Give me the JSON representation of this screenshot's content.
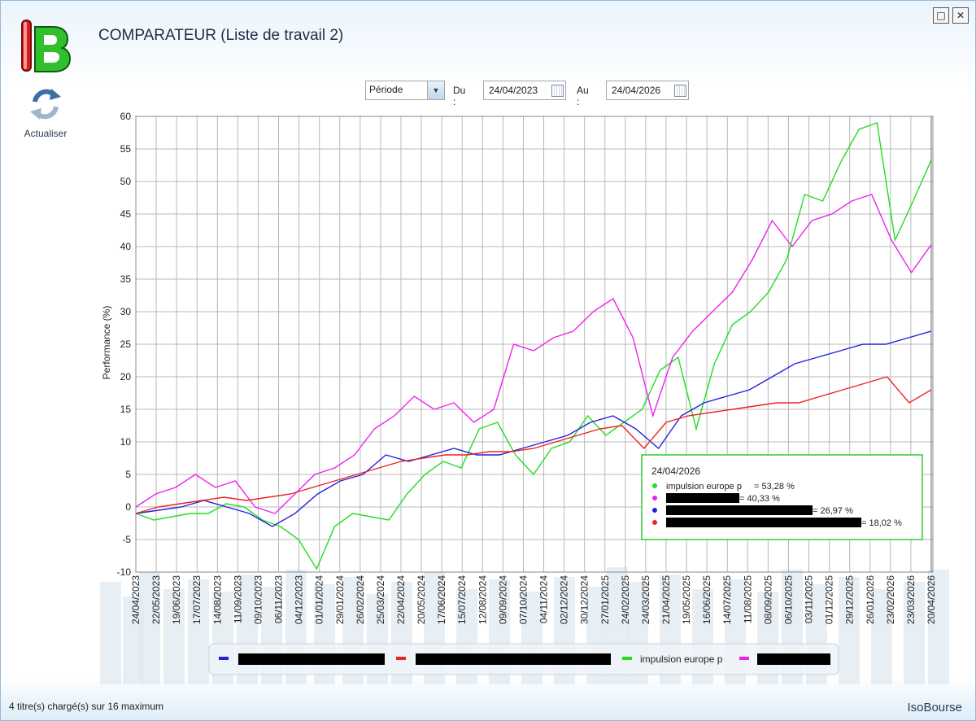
{
  "window": {
    "title": "COMPARATEUR (Liste de travail 2)"
  },
  "toolbar": {
    "refresh_label": "Actualiser"
  },
  "period": {
    "select_value": "Période",
    "from_label": "Du :",
    "from_value": "24/04/2023",
    "to_label": "Au :",
    "to_value": "24/04/2026"
  },
  "status": {
    "left": "4 titre(s) chargé(s) sur 16 maximum",
    "right": "IsoBourse"
  },
  "colors": {
    "green": "#22dd22",
    "magenta": "#ee22ee",
    "blue": "#2222dd",
    "red": "#ee2222"
  },
  "tooltip": {
    "date": "24/04/2026",
    "rows": [
      {
        "color": "#22dd22",
        "label": "impulsion europe p",
        "value": " = 53,28 %"
      },
      {
        "color": "#ee22ee",
        "label": "",
        "value": " = 40,33 %"
      },
      {
        "color": "#2222dd",
        "label": "",
        "value": " = 26,97 %"
      },
      {
        "color": "#ee2222",
        "label": "",
        "value": " = 18,02 %"
      }
    ]
  },
  "legend": [
    {
      "color": "#2222dd",
      "label": ""
    },
    {
      "color": "#ee2222",
      "label": ""
    },
    {
      "color": "#22dd22",
      "label": "impulsion europe p"
    },
    {
      "color": "#ee22ee",
      "label": ""
    }
  ],
  "chart_data": {
    "type": "line",
    "ylabel": "Performance (%)",
    "ylim": [
      -10,
      60
    ],
    "yticks": [
      -10,
      -5,
      0,
      5,
      10,
      15,
      20,
      25,
      30,
      35,
      40,
      45,
      50,
      55,
      60
    ],
    "grid": true,
    "x_tick_labels": [
      "24/04/2023",
      "22/05/2023",
      "19/06/2023",
      "17/07/2023",
      "14/08/2023",
      "11/09/2023",
      "09/10/2023",
      "06/11/2023",
      "04/12/2023",
      "01/01/2024",
      "29/01/2024",
      "26/02/2024",
      "25/03/2024",
      "22/04/2024",
      "20/05/2024",
      "17/06/2024",
      "15/07/2024",
      "12/08/2024",
      "09/09/2024",
      "07/10/2024",
      "04/11/2024",
      "02/12/2024",
      "30/12/2024",
      "27/01/2025",
      "24/02/2025",
      "24/03/2025",
      "21/04/2025",
      "19/05/2025",
      "16/06/2025",
      "14/07/2025",
      "11/08/2025",
      "08/09/2025",
      "06/10/2025",
      "03/11/2025",
      "01/12/2025",
      "29/12/2025",
      "26/01/2026",
      "23/02/2026",
      "23/03/2026",
      "20/04/2026"
    ],
    "series": [
      {
        "name": "impulsion europe p",
        "color": "#22dd22",
        "values": [
          -1,
          -2,
          -1.5,
          -1,
          -1,
          0.5,
          0,
          -2,
          -3,
          -5,
          -9.5,
          -3,
          -1,
          -1.5,
          -2,
          2,
          5,
          7,
          6,
          12,
          13,
          8,
          5,
          9,
          10,
          14,
          11,
          13,
          15,
          21,
          23,
          12,
          22,
          28,
          30,
          33,
          38,
          48,
          47,
          53,
          58,
          59,
          41,
          47,
          53.3
        ]
      },
      {
        "name": "",
        "color": "#ee22ee",
        "values": [
          0,
          2,
          3,
          5,
          3,
          4,
          0,
          -1,
          2,
          5,
          6,
          8,
          12,
          14,
          17,
          15,
          16,
          13,
          15,
          25,
          24,
          26,
          27,
          30,
          32,
          26,
          14,
          23,
          27,
          30,
          33,
          38,
          44,
          40,
          44,
          45,
          47,
          48,
          41,
          36,
          40.3
        ]
      },
      {
        "name": "",
        "color": "#2222dd",
        "values": [
          -1,
          -0.5,
          0,
          1,
          0,
          -1,
          -3,
          -1,
          2,
          4,
          5,
          8,
          7,
          8,
          9,
          8,
          8,
          9,
          10,
          11,
          13,
          14,
          12,
          9,
          14,
          16,
          17,
          18,
          20,
          22,
          23,
          24,
          25,
          25,
          26,
          27
        ]
      },
      {
        "name": "",
        "color": "#ee2222",
        "values": [
          -1,
          0,
          0.5,
          1,
          1.5,
          1,
          1.5,
          2,
          3,
          4,
          5,
          6,
          7,
          7.5,
          8,
          8,
          8.5,
          8.5,
          9,
          10,
          11,
          12,
          12.5,
          9,
          13,
          14,
          14.5,
          15,
          15.5,
          16,
          16,
          17,
          18,
          19,
          20,
          16,
          18
        ]
      }
    ]
  }
}
